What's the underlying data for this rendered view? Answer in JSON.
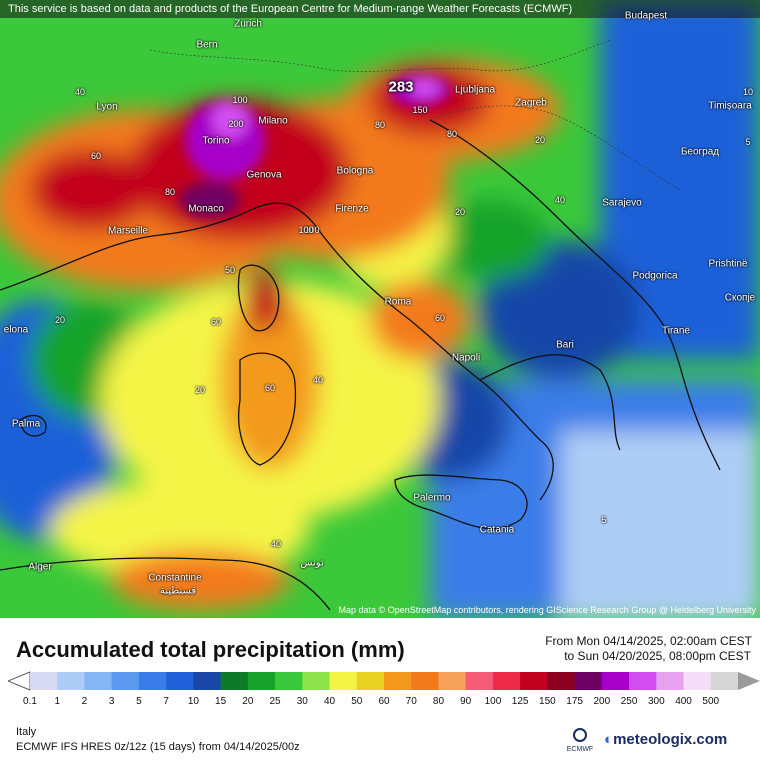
{
  "notice": "This service is based on data and products of the European Centre for Medium-range Weather Forecasts (ECMWF)",
  "credits": "Map data © OpenStreetMap contributors, rendering GIScience Research Group @ Heidelberg University",
  "title": "Accumulated total precipitation (mm)",
  "period_from": "From Mon 04/14/2025, 02:00am CEST",
  "period_to": "to Sun 04/20/2025, 08:00pm CEST",
  "region": "Italy",
  "model": "ECMWF IFS HRES 0z/12z (15 days) from 04/14/2025/00z",
  "brand": "meteologix.com",
  "brand_sub": "ECMWF",
  "max_value": "283",
  "legend": {
    "ticks": [
      "0.1",
      "1",
      "2",
      "3",
      "5",
      "7",
      "10",
      "15",
      "20",
      "25",
      "30",
      "40",
      "50",
      "60",
      "70",
      "80",
      "90",
      "100",
      "125",
      "150",
      "175",
      "200",
      "250",
      "300",
      "400",
      "500"
    ],
    "colors": [
      "#d7d9f3",
      "#aecdf6",
      "#86b6f4",
      "#5b98ef",
      "#3a7de8",
      "#1f60d8",
      "#1847a8",
      "#0d7a2a",
      "#17a32c",
      "#3bc83a",
      "#8fe34a",
      "#f4f446",
      "#e9d223",
      "#f39a1e",
      "#f37a1c",
      "#f6a25c",
      "#f65c77",
      "#ee2a4a",
      "#c2001f",
      "#8c0020",
      "#6f0063",
      "#a600c9",
      "#d14df0",
      "#e6a1ef",
      "#f6ddf9",
      "#d6d6d6"
    ]
  },
  "cities": [
    {
      "name": "Zürich"
    },
    {
      "name": "Bern"
    },
    {
      "name": "Budapest"
    },
    {
      "name": "Lyon"
    },
    {
      "name": "Milano"
    },
    {
      "name": "Torino"
    },
    {
      "name": "Genova"
    },
    {
      "name": "Bologna"
    },
    {
      "name": "Ljubljana"
    },
    {
      "name": "Zagreb"
    },
    {
      "name": "Timișoara"
    },
    {
      "name": "Београд"
    },
    {
      "name": "Sarajevo"
    },
    {
      "name": "Monaco"
    },
    {
      "name": "Marseille"
    },
    {
      "name": "Firenze"
    },
    {
      "name": "Podgorica"
    },
    {
      "name": "Prishtinë"
    },
    {
      "name": "Скопје"
    },
    {
      "name": "Roma"
    },
    {
      "name": "elona"
    },
    {
      "name": "Tiranë"
    },
    {
      "name": "Bari"
    },
    {
      "name": "Napoli"
    },
    {
      "name": "Palma"
    },
    {
      "name": "Palermo"
    },
    {
      "name": "Catania"
    },
    {
      "name": "Alger"
    },
    {
      "name": "Constantine"
    },
    {
      "name": "قسنطينة"
    },
    {
      "name": "تونس"
    }
  ],
  "contour_labels": [
    "100",
    "200",
    "40",
    "60",
    "80",
    "20",
    "50",
    "40",
    "20",
    "60",
    "80",
    "100",
    "10",
    "5",
    "5",
    "20",
    "40",
    "60",
    "80",
    "100",
    "150",
    "20",
    "40",
    "60"
  ]
}
